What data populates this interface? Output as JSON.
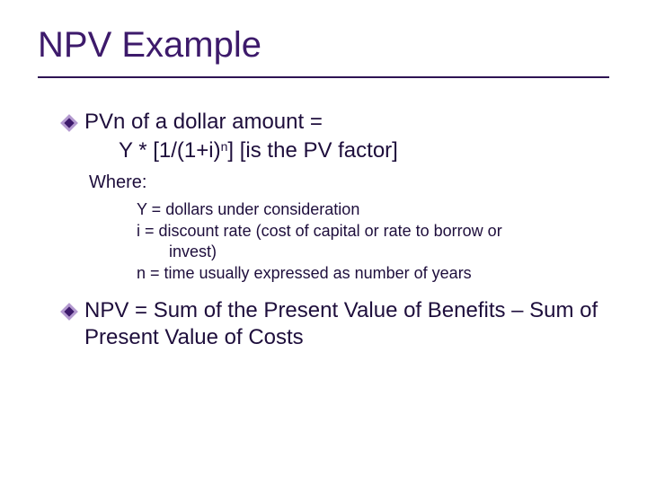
{
  "colors": {
    "title_color": "#3d1a6b",
    "title_underline": "#2e1453",
    "body_text": "#1e0e3c",
    "diamond_outer": "#b49ad0",
    "diamond_inner": "#3d1a6b"
  },
  "title": "NPV Example",
  "b1_line1": "PVn of a dollar amount  =",
  "b1_formula_pre": "Y * [1/(1+i)",
  "b1_formula_sup": "n",
  "b1_formula_post": "]  [is the PV factor]",
  "where_label": "Where:",
  "defs": {
    "d1": "Y = dollars under consideration",
    "d2a": "i = discount rate (cost of capital or rate to borrow or",
    "d2b": "invest)",
    "d3": "n = time usually expressed as number of years"
  },
  "b2": "NPV = Sum of the Present Value of Benefits – Sum of Present Value of Costs"
}
